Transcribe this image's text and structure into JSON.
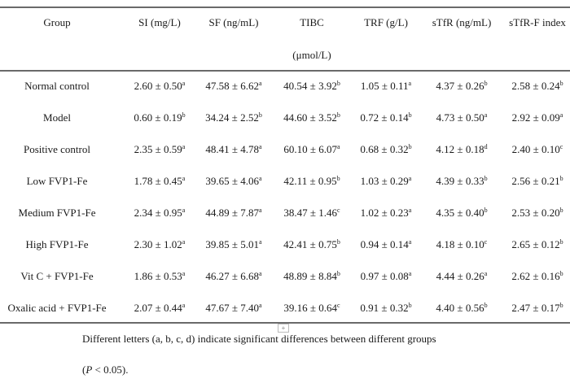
{
  "headers": [
    {
      "label": "Group"
    },
    {
      "label": "SI (mg/L)"
    },
    {
      "label": "SF (ng/mL)"
    },
    {
      "label": "TIBC",
      "unit": "(μmol/L)"
    },
    {
      "label": "TRF (g/L)"
    },
    {
      "label": "sTfR (ng/mL)"
    },
    {
      "label": "sTfR-F index"
    }
  ],
  "rows": [
    {
      "group": "Normal control",
      "cells": [
        [
          "2.60 ± 0.50",
          "a"
        ],
        [
          "47.58 ± 6.62",
          "a"
        ],
        [
          "40.54 ± 3.92",
          "b"
        ],
        [
          "1.05 ± 0.11",
          "a"
        ],
        [
          "4.37 ± 0.26",
          "b"
        ],
        [
          "2.58 ± 0.24",
          "b"
        ]
      ]
    },
    {
      "group": "Model",
      "cells": [
        [
          "0.60 ± 0.19",
          "b"
        ],
        [
          "34.24 ± 2.52",
          "b"
        ],
        [
          "44.60 ± 3.52",
          "b"
        ],
        [
          "0.72 ± 0.14",
          "b"
        ],
        [
          "4.73 ± 0.50",
          "a"
        ],
        [
          "2.92 ± 0.09",
          "a"
        ]
      ]
    },
    {
      "group": "Positive control",
      "cells": [
        [
          "2.35 ± 0.59",
          "a"
        ],
        [
          "48.41 ± 4.78",
          "a"
        ],
        [
          "60.10 ± 6.07",
          "a"
        ],
        [
          "0.68 ± 0.32",
          "b"
        ],
        [
          "4.12 ± 0.18",
          "d"
        ],
        [
          "2.40 ± 0.10",
          "c"
        ]
      ]
    },
    {
      "group": "Low FVP1-Fe",
      "cells": [
        [
          "1.78 ± 0.45",
          "a"
        ],
        [
          "39.65 ± 4.06",
          "a"
        ],
        [
          "42.11 ± 0.95",
          "b"
        ],
        [
          "1.03 ± 0.29",
          "a"
        ],
        [
          "4.39 ± 0.33",
          "b"
        ],
        [
          "2.56 ± 0.21",
          "b"
        ]
      ]
    },
    {
      "group": "Medium FVP1-Fe",
      "cells": [
        [
          "2.34 ± 0.95",
          "a"
        ],
        [
          "44.89 ± 7.87",
          "a"
        ],
        [
          "38.47 ± 1.46",
          "c"
        ],
        [
          "1.02 ± 0.23",
          "a"
        ],
        [
          "4.35 ± 0.40",
          "b"
        ],
        [
          "2.53 ± 0.20",
          "b"
        ]
      ]
    },
    {
      "group": "High FVP1-Fe",
      "cells": [
        [
          "2.30 ± 1.02",
          "a"
        ],
        [
          "39.85 ± 5.01",
          "a"
        ],
        [
          "42.41 ± 0.75",
          "b"
        ],
        [
          "0.94 ± 0.14",
          "a"
        ],
        [
          "4.18 ± 0.10",
          "c"
        ],
        [
          "2.65 ± 0.12",
          "b"
        ]
      ]
    },
    {
      "group": "Vit C + FVP1-Fe",
      "cells": [
        [
          "1.86 ± 0.53",
          "a"
        ],
        [
          "46.27 ± 6.68",
          "a"
        ],
        [
          "48.89 ± 8.84",
          "b"
        ],
        [
          "0.97 ± 0.08",
          "a"
        ],
        [
          "4.44 ± 0.26",
          "a"
        ],
        [
          "2.62 ± 0.16",
          "b"
        ]
      ]
    },
    {
      "group": "Oxalic acid + FVP1-Fe",
      "cells": [
        [
          "2.07 ± 0.44",
          "a"
        ],
        [
          "47.67 ± 7.40",
          "a"
        ],
        [
          "39.16 ± 0.64",
          "c"
        ],
        [
          "0.91 ± 0.32",
          "b"
        ],
        [
          "4.40 ± 0.56",
          "b"
        ],
        [
          "2.47 ± 0.17",
          "b"
        ]
      ]
    }
  ],
  "footnote": {
    "line1": "Different letters (a, b, c, d) indicate significant differences between different groups",
    "line2_prefix": "(",
    "line2_italic": "P",
    "line2_suffix": " < 0.05)."
  },
  "table_handle_icon": "plus-icon"
}
